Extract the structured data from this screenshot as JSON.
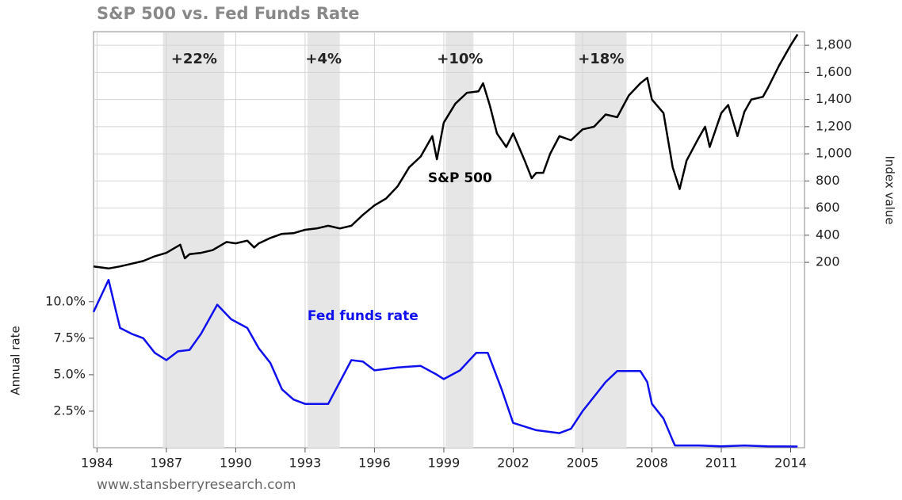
{
  "chart_data": {
    "type": "line",
    "title": "S&P 500 vs. Fed Funds Rate",
    "source": "www.stansberryresearch.com",
    "ylabel": "Annual rate",
    "y2label": "Index value",
    "xlim": [
      1983.85,
      2014.6
    ],
    "xticks": [
      1984,
      1987,
      1990,
      1993,
      1996,
      1999,
      2002,
      2005,
      2008,
      2011,
      2014
    ],
    "ylim": [
      0,
      28.5
    ],
    "yticks": [
      {
        "value": 2.5,
        "label": "2.5%"
      },
      {
        "value": 5,
        "label": "5.0%"
      },
      {
        "value": 7.5,
        "label": "7.5%"
      },
      {
        "value": 10,
        "label": "10.0%"
      }
    ],
    "y2lim": [
      -1166,
      1900
    ],
    "y2ticks": [
      200,
      400,
      600,
      800,
      {
        "value": 1000,
        "label": "1,000"
      },
      {
        "value": 1200,
        "label": "1,200"
      },
      {
        "value": 1400,
        "label": "1,400"
      },
      {
        "value": 1600,
        "label": "1,600"
      },
      {
        "value": 1800,
        "label": "1,800"
      }
    ],
    "grid": true,
    "shaded": [
      [
        1986.85,
        1989.5
      ],
      [
        1993.1,
        1994.5
      ],
      [
        1999.08,
        2000.28
      ],
      [
        2004.67,
        2006.9
      ]
    ],
    "annotations": [
      {
        "text": "+22%",
        "x": 1988.2
      },
      {
        "text": "+4%",
        "x": 1993.8
      },
      {
        "text": "+10%",
        "x": 1999.7
      },
      {
        "text": "+18%",
        "x": 2005.8
      }
    ],
    "series": [
      {
        "name": "S&P 500",
        "color": "#000000",
        "axis": "y2",
        "label_x": 1999.7,
        "label_y": 820,
        "x": [
          1983.85,
          1984.5,
          1985,
          1985.5,
          1986,
          1986.5,
          1987,
          1987.6,
          1987.8,
          1988,
          1988.5,
          1989,
          1989.6,
          1990,
          1990.5,
          1990.8,
          1991,
          1991.5,
          1992,
          1992.5,
          1993,
          1993.5,
          1994,
          1994.5,
          1995,
          1995.5,
          1996,
          1996.5,
          1997,
          1997.5,
          1998,
          1998.5,
          1998.7,
          1999,
          1999.5,
          2000,
          2000.5,
          2000.7,
          2001,
          2001.3,
          2001.7,
          2002,
          2002.5,
          2002.8,
          2003,
          2003.3,
          2003.6,
          2004,
          2004.5,
          2005,
          2005.5,
          2006,
          2006.5,
          2007,
          2007.5,
          2007.8,
          2008,
          2008.5,
          2008.9,
          2009.2,
          2009.5,
          2010,
          2010.3,
          2010.5,
          2011,
          2011.3,
          2011.7,
          2012,
          2012.3,
          2012.8,
          2013,
          2013.5,
          2014,
          2014.3
        ],
        "values": [
          170,
          155,
          170,
          190,
          210,
          245,
          270,
          330,
          230,
          260,
          270,
          290,
          350,
          340,
          360,
          310,
          340,
          380,
          410,
          415,
          440,
          450,
          470,
          450,
          470,
          550,
          620,
          670,
          760,
          900,
          980,
          1130,
          960,
          1230,
          1370,
          1450,
          1460,
          1520,
          1350,
          1150,
          1050,
          1150,
          950,
          820,
          860,
          860,
          1000,
          1130,
          1100,
          1180,
          1200,
          1290,
          1270,
          1430,
          1520,
          1560,
          1400,
          1300,
          900,
          740,
          950,
          1110,
          1200,
          1050,
          1300,
          1360,
          1130,
          1310,
          1400,
          1420,
          1480,
          1650,
          1800,
          1880
        ]
      },
      {
        "name": "Fed funds rate",
        "color": "#1010ee",
        "axis": "y",
        "label_x": 1995.5,
        "label_y": 9.0,
        "x": [
          1983.85,
          1984.5,
          1984.8,
          1985,
          1985.5,
          1986,
          1986.5,
          1987,
          1987.5,
          1988,
          1988.5,
          1989.2,
          1989.8,
          1990.5,
          1991,
          1991.5,
          1992,
          1992.5,
          1993,
          1994,
          1994.5,
          1995,
          1995.5,
          1996,
          1997,
          1998,
          1998.7,
          1999,
          1999.7,
          2000.4,
          2000.9,
          2001.5,
          2002,
          2003,
          2004,
          2004.5,
          2005,
          2006,
          2006.5,
          2007.5,
          2007.8,
          2008,
          2008.5,
          2008.9,
          2009,
          2010,
          2011,
          2012,
          2013,
          2014.3
        ],
        "values": [
          9.3,
          11.5,
          9.5,
          8.2,
          7.8,
          7.5,
          6.5,
          6.0,
          6.6,
          6.7,
          7.8,
          9.8,
          8.8,
          8.2,
          6.8,
          5.8,
          4.0,
          3.3,
          3.0,
          3.0,
          4.5,
          6.0,
          5.9,
          5.3,
          5.5,
          5.6,
          5.0,
          4.7,
          5.3,
          6.5,
          6.5,
          4.0,
          1.7,
          1.2,
          1.0,
          1.3,
          2.5,
          4.5,
          5.25,
          5.25,
          4.5,
          3.0,
          2.0,
          0.5,
          0.15,
          0.15,
          0.1,
          0.15,
          0.1,
          0.08
        ]
      }
    ]
  }
}
